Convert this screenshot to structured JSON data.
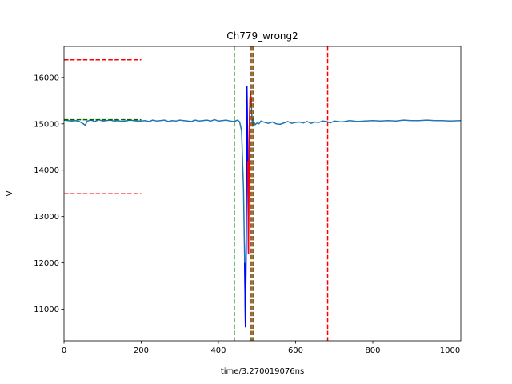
{
  "chart_data": {
    "type": "line",
    "title": "Ch779_wrong2",
    "xlabel": "time/3.270019076ns",
    "ylabel": "V",
    "xlim": [
      0,
      1028
    ],
    "ylim": [
      10320,
      16670
    ],
    "x_ticks": [
      0,
      200,
      400,
      600,
      800,
      1000
    ],
    "x_tick_labels": [
      "0",
      "200",
      "400",
      "600",
      "800",
      "1000"
    ],
    "y_ticks": [
      11000,
      12000,
      13000,
      14000,
      15000,
      16000
    ],
    "y_tick_labels": [
      "11000",
      "12000",
      "13000",
      "14000",
      "15000",
      "16000"
    ],
    "grid": false,
    "legend": "none",
    "series": [
      {
        "color": "#1f77b4",
        "x": [
          0,
          10,
          20,
          30,
          40,
          50,
          55,
          60,
          70,
          80,
          90,
          100,
          110,
          120,
          130,
          140,
          150,
          160,
          170,
          180,
          190,
          200,
          210,
          220,
          230,
          240,
          250,
          260,
          270,
          280,
          290,
          300,
          310,
          320,
          330,
          340,
          350,
          360,
          370,
          380,
          390,
          400,
          410,
          420,
          430,
          440,
          450,
          455,
          460,
          465,
          468,
          470,
          472,
          474,
          476,
          478,
          480,
          482,
          484,
          486,
          488,
          490,
          492,
          495,
          500,
          505,
          510,
          520,
          530,
          540,
          550,
          560,
          570,
          580,
          590,
          600,
          610,
          620,
          630,
          640,
          650,
          660,
          670,
          680,
          690,
          700,
          720,
          740,
          760,
          780,
          800,
          820,
          840,
          860,
          880,
          900,
          920,
          940,
          960,
          980,
          1000,
          1028
        ],
        "y": [
          15080,
          15070,
          15060,
          15070,
          15050,
          15000,
          14970,
          15060,
          15080,
          15050,
          15090,
          15060,
          15070,
          15080,
          15060,
          15070,
          15050,
          15060,
          15080,
          15070,
          15060,
          15060,
          15070,
          15050,
          15080,
          15060,
          15070,
          15080,
          15050,
          15070,
          15060,
          15080,
          15070,
          15060,
          15050,
          15080,
          15060,
          15070,
          15080,
          15060,
          15090,
          15060,
          15070,
          15080,
          15060,
          15050,
          15080,
          15040,
          14850,
          13600,
          12000,
          10620,
          12500,
          15800,
          14200,
          12200,
          14900,
          15550,
          15600,
          15300,
          14950,
          15100,
          15050,
          14980,
          15020,
          15000,
          15060,
          15030,
          15010,
          15040,
          15000,
          14990,
          15020,
          15050,
          15010,
          15030,
          15040,
          15020,
          15050,
          15010,
          15040,
          15030,
          15060,
          15050,
          15020,
          15060,
          15040,
          15070,
          15050,
          15060,
          15070,
          15060,
          15070,
          15060,
          15080,
          15070,
          15070,
          15080,
          15070,
          15070,
          15060,
          15070
        ]
      },
      {
        "color": "#0000ff",
        "x": [
          468,
          469,
          470,
          471,
          472,
          473,
          474,
          475,
          476,
          477,
          478
        ],
        "y": [
          12000,
          11300,
          10620,
          11500,
          12500,
          14000,
          15800,
          15000,
          14200,
          13200,
          12200
        ]
      },
      {
        "color": "#ff0000",
        "x": [
          476,
          477,
          478,
          479,
          480,
          481,
          482,
          483,
          484,
          485
        ],
        "y": [
          14200,
          13500,
          12200,
          13500,
          14900,
          15300,
          15550,
          15700,
          15600,
          15400
        ]
      },
      {
        "color": "#006400",
        "dash": "dashed",
        "x": [
          0,
          200
        ],
        "y": [
          15090,
          15090
        ]
      }
    ],
    "vlines": [
      {
        "x": 441,
        "color": "#008000"
      },
      {
        "x": 483,
        "color": "#008000"
      },
      {
        "x": 491,
        "color": "#008000"
      },
      {
        "x": 487,
        "color": "#ff0000"
      },
      {
        "x": 683,
        "color": "#ff0000"
      }
    ],
    "hsegments": [
      {
        "y": 16380,
        "x0": 0,
        "x1": 200,
        "color": "#ff0000"
      },
      {
        "y": 13490,
        "x0": 0,
        "x1": 200,
        "color": "#ff0000"
      }
    ]
  }
}
